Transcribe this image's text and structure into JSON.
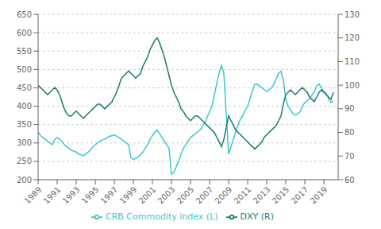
{
  "chart_data": {
    "type": "line",
    "title": "",
    "xlabel": "",
    "ylabel": "",
    "y2label": "",
    "x": [
      1989,
      1989.25,
      1989.5,
      1989.75,
      1990,
      1990.25,
      1990.5,
      1990.75,
      1991,
      1991.25,
      1991.5,
      1991.75,
      1992,
      1992.25,
      1992.5,
      1992.75,
      1993,
      1993.25,
      1993.5,
      1993.75,
      1994,
      1994.25,
      1994.5,
      1994.75,
      1995,
      1995.25,
      1995.5,
      1995.75,
      1996,
      1996.25,
      1996.5,
      1996.75,
      1997,
      1997.25,
      1997.5,
      1997.75,
      1998,
      1998.25,
      1998.5,
      1998.75,
      1999,
      1999.25,
      1999.5,
      1999.75,
      2000,
      2000.25,
      2000.5,
      2000.75,
      2001,
      2001.25,
      2001.5,
      2001.75,
      2002,
      2002.25,
      2002.5,
      2002.75,
      2003,
      2003.25,
      2003.5,
      2003.75,
      2004,
      2004.25,
      2004.5,
      2004.75,
      2005,
      2005.25,
      2005.5,
      2005.75,
      2006,
      2006.25,
      2006.5,
      2006.75,
      2007,
      2007.25,
      2007.5,
      2007.75,
      2008,
      2008.25,
      2008.5,
      2008.75,
      2009,
      2009.25,
      2009.5,
      2009.75,
      2010,
      2010.25,
      2010.5,
      2010.75,
      2011,
      2011.25,
      2011.5,
      2011.75,
      2012,
      2012.25,
      2012.5,
      2012.75,
      2013,
      2013.25,
      2013.5,
      2013.75,
      2014,
      2014.25,
      2014.5,
      2014.75,
      2015,
      2015.25,
      2015.5,
      2015.75,
      2016,
      2016.25,
      2016.5,
      2016.75,
      2017,
      2017.25,
      2017.5,
      2017.75,
      2018,
      2018.25,
      2018.5,
      2018.75,
      2019,
      2019.25,
      2019.5,
      2019.75,
      2020
    ],
    "series": [
      {
        "name": "CRB Commodity index (L)",
        "color": "#3cc8c8",
        "values": [
          330,
          320,
          315,
          310,
          305,
          300,
          295,
          310,
          315,
          310,
          305,
          295,
          290,
          285,
          280,
          278,
          275,
          270,
          268,
          265,
          270,
          275,
          280,
          290,
          295,
          300,
          305,
          308,
          310,
          315,
          318,
          320,
          322,
          318,
          315,
          310,
          305,
          300,
          295,
          260,
          255,
          258,
          262,
          268,
          275,
          285,
          295,
          310,
          320,
          330,
          335,
          325,
          315,
          305,
          295,
          285,
          215,
          220,
          235,
          250,
          270,
          285,
          295,
          305,
          315,
          320,
          325,
          330,
          335,
          345,
          355,
          370,
          385,
          400,
          430,
          460,
          490,
          510,
          490,
          380,
          270,
          290,
          310,
          330,
          350,
          365,
          375,
          390,
          400,
          420,
          440,
          460,
          460,
          455,
          450,
          445,
          440,
          445,
          450,
          460,
          475,
          490,
          495,
          470,
          420,
          400,
          390,
          380,
          375,
          380,
          385,
          400,
          410,
          415,
          420,
          430,
          440,
          455,
          460,
          450,
          440,
          435,
          420,
          410,
          415
        ]
      },
      {
        "name": "DXY  (R)",
        "color": "#1a7a6e",
        "axis": "y2",
        "values": [
          100,
          99,
          98,
          97,
          96,
          97,
          98,
          99,
          98,
          96,
          93,
          90,
          88,
          87,
          87,
          88,
          89,
          88,
          87,
          86,
          87,
          88,
          89,
          90,
          91,
          92,
          92,
          91,
          90,
          91,
          92,
          93,
          95,
          97,
          100,
          103,
          104,
          105,
          106,
          105,
          104,
          103,
          104,
          105,
          108,
          110,
          112,
          115,
          117,
          119,
          120,
          118,
          115,
          112,
          108,
          104,
          100,
          97,
          95,
          93,
          90,
          89,
          87,
          86,
          85,
          86,
          87,
          87,
          86,
          85,
          84,
          83,
          82,
          81,
          80,
          78,
          76,
          74,
          77,
          82,
          87,
          85,
          83,
          81,
          80,
          79,
          78,
          77,
          76,
          75,
          74,
          73,
          74,
          75,
          76,
          78,
          79,
          80,
          81,
          82,
          83,
          85,
          87,
          92,
          96,
          97,
          98,
          97,
          96,
          97,
          98,
          99,
          98,
          97,
          95,
          94,
          93,
          95,
          97,
          98,
          97,
          96,
          95,
          94,
          97
        ]
      }
    ],
    "xlim": [
      1989,
      2020.5
    ],
    "xticks": [
      1989,
      1991,
      1993,
      1995,
      1997,
      1999,
      2001,
      2003,
      2005,
      2007,
      2009,
      2011,
      2013,
      2015,
      2017,
      2019
    ],
    "ylim": [
      200,
      650
    ],
    "yticks": [
      200,
      250,
      300,
      350,
      400,
      450,
      500,
      550,
      600,
      650
    ],
    "y2lim": [
      60,
      130
    ],
    "y2ticks": [
      60,
      70,
      80,
      90,
      100,
      110,
      120,
      130
    ],
    "grid": true,
    "legend": "bottom"
  }
}
